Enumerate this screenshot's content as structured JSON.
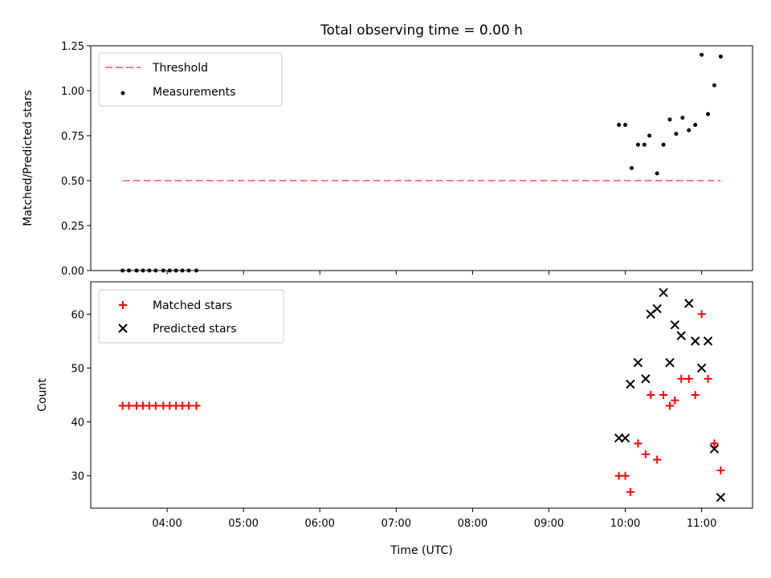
{
  "chart_data": [
    {
      "type": "scatter",
      "title": "Total observing time = 0.00 h",
      "xlabel": "",
      "ylabel": "Matched/Predicted stars",
      "ylim": [
        0,
        1.25
      ],
      "yticks": [
        "0.00",
        "0.25",
        "0.50",
        "0.75",
        "1.00",
        "1.25"
      ],
      "legend_position": "top-left",
      "threshold": {
        "name": "Threshold",
        "value": 0.5,
        "x_range": [
          "03:25",
          "11:15"
        ],
        "color": "#ff7f7f",
        "style": "dashed"
      },
      "series": [
        {
          "name": "Measurements",
          "color": "#000000",
          "marker": "dot",
          "points": [
            {
              "x": "03:25",
              "y": 0.0
            },
            {
              "x": "03:30",
              "y": 0.0
            },
            {
              "x": "03:36",
              "y": 0.0
            },
            {
              "x": "03:41",
              "y": 0.0
            },
            {
              "x": "03:46",
              "y": 0.0
            },
            {
              "x": "03:51",
              "y": 0.0
            },
            {
              "x": "03:57",
              "y": 0.0
            },
            {
              "x": "04:02",
              "y": 0.0
            },
            {
              "x": "04:07",
              "y": 0.0
            },
            {
              "x": "04:12",
              "y": 0.0
            },
            {
              "x": "04:17",
              "y": 0.0
            },
            {
              "x": "04:23",
              "y": 0.0
            },
            {
              "x": "09:55",
              "y": 0.81
            },
            {
              "x": "10:00",
              "y": 0.81
            },
            {
              "x": "10:05",
              "y": 0.57
            },
            {
              "x": "10:10",
              "y": 0.7
            },
            {
              "x": "10:15",
              "y": 0.7
            },
            {
              "x": "10:19",
              "y": 0.75
            },
            {
              "x": "10:25",
              "y": 0.54
            },
            {
              "x": "10:30",
              "y": 0.7
            },
            {
              "x": "10:35",
              "y": 0.84
            },
            {
              "x": "10:40",
              "y": 0.76
            },
            {
              "x": "10:45",
              "y": 0.85
            },
            {
              "x": "10:50",
              "y": 0.78
            },
            {
              "x": "10:55",
              "y": 0.81
            },
            {
              "x": "11:00",
              "y": 1.2
            },
            {
              "x": "11:05",
              "y": 0.87
            },
            {
              "x": "11:10",
              "y": 1.03
            },
            {
              "x": "11:15",
              "y": 1.19
            }
          ]
        }
      ]
    },
    {
      "type": "scatter",
      "title": "",
      "xlabel": "Time (UTC)",
      "ylabel": "Count",
      "ylim": [
        24,
        66
      ],
      "yticks": [
        "30",
        "40",
        "50",
        "60"
      ],
      "xticks": [
        "04:00",
        "05:00",
        "06:00",
        "07:00",
        "08:00",
        "09:00",
        "10:00",
        "11:00"
      ],
      "xlim": [
        "03:00",
        "11:40"
      ],
      "legend_position": "top-left",
      "series": [
        {
          "name": "Matched stars",
          "color": "#ff0000",
          "marker": "plus",
          "points": [
            {
              "x": "03:25",
              "y": 43
            },
            {
              "x": "03:30",
              "y": 43
            },
            {
              "x": "03:36",
              "y": 43
            },
            {
              "x": "03:41",
              "y": 43
            },
            {
              "x": "03:46",
              "y": 43
            },
            {
              "x": "03:51",
              "y": 43
            },
            {
              "x": "03:57",
              "y": 43
            },
            {
              "x": "04:02",
              "y": 43
            },
            {
              "x": "04:07",
              "y": 43
            },
            {
              "x": "04:12",
              "y": 43
            },
            {
              "x": "04:17",
              "y": 43
            },
            {
              "x": "04:23",
              "y": 43
            },
            {
              "x": "09:55",
              "y": 30
            },
            {
              "x": "10:00",
              "y": 30
            },
            {
              "x": "10:04",
              "y": 27
            },
            {
              "x": "10:10",
              "y": 36
            },
            {
              "x": "10:16",
              "y": 34
            },
            {
              "x": "10:20",
              "y": 45
            },
            {
              "x": "10:25",
              "y": 33
            },
            {
              "x": "10:30",
              "y": 45
            },
            {
              "x": "10:35",
              "y": 43
            },
            {
              "x": "10:39",
              "y": 44
            },
            {
              "x": "10:44",
              "y": 48
            },
            {
              "x": "10:50",
              "y": 48
            },
            {
              "x": "10:55",
              "y": 45
            },
            {
              "x": "11:00",
              "y": 60
            },
            {
              "x": "11:05",
              "y": 48
            },
            {
              "x": "11:10",
              "y": 36
            },
            {
              "x": "11:15",
              "y": 31
            }
          ]
        },
        {
          "name": "Predicted stars",
          "color": "#000000",
          "marker": "x",
          "points": [
            {
              "x": "09:55",
              "y": 37
            },
            {
              "x": "10:00",
              "y": 37
            },
            {
              "x": "10:04",
              "y": 47
            },
            {
              "x": "10:10",
              "y": 51
            },
            {
              "x": "10:16",
              "y": 48
            },
            {
              "x": "10:20",
              "y": 60
            },
            {
              "x": "10:25",
              "y": 61
            },
            {
              "x": "10:30",
              "y": 64
            },
            {
              "x": "10:35",
              "y": 51
            },
            {
              "x": "10:39",
              "y": 58
            },
            {
              "x": "10:44",
              "y": 56
            },
            {
              "x": "10:50",
              "y": 62
            },
            {
              "x": "10:55",
              "y": 55
            },
            {
              "x": "11:00",
              "y": 50
            },
            {
              "x": "11:05",
              "y": 55
            },
            {
              "x": "11:10",
              "y": 35
            },
            {
              "x": "11:15",
              "y": 26
            }
          ]
        }
      ]
    }
  ]
}
